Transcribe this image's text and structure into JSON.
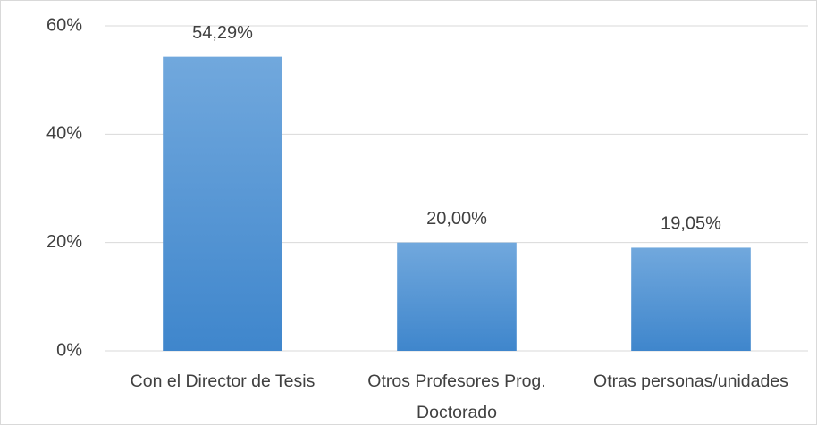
{
  "chart_data": {
    "type": "bar",
    "categories": [
      "Con el Director de Tesis",
      "Otros Profesores Prog. Doctorado",
      "Otras personas/unidades"
    ],
    "values": [
      54.29,
      20.0,
      19.05
    ],
    "value_labels": [
      "54,29%",
      "20,00%",
      "19,05%"
    ],
    "color": "#5b9bd5",
    "ylim": [
      0,
      60
    ],
    "yticks": [
      {
        "value": 0,
        "label": "0%"
      },
      {
        "value": 20,
        "label": "20%"
      },
      {
        "value": 40,
        "label": "40%"
      },
      {
        "value": 60,
        "label": "60%"
      }
    ],
    "grid": true
  }
}
